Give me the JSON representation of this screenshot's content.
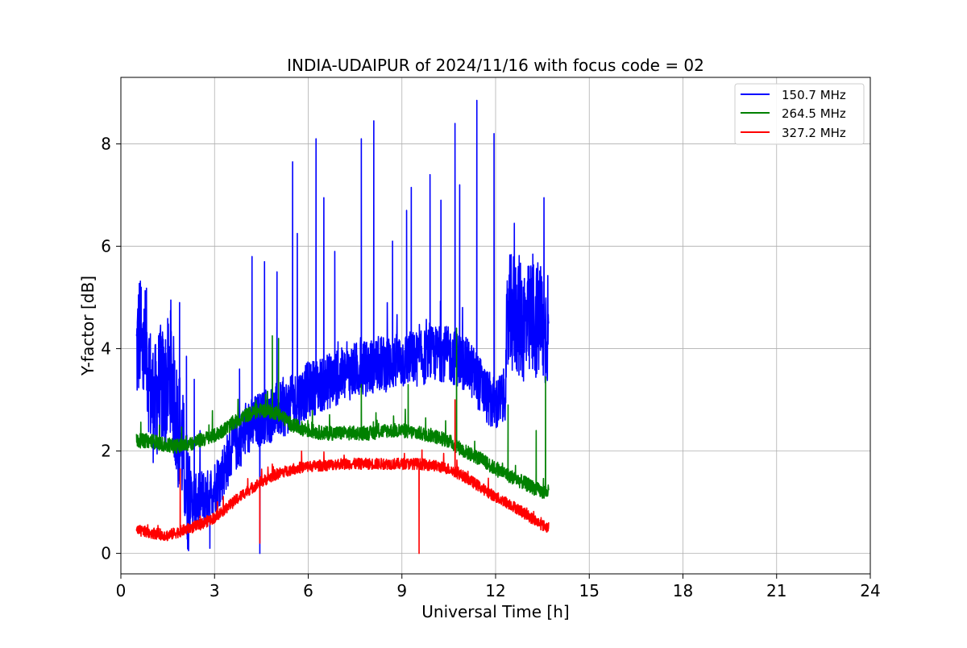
{
  "chart_data": {
    "type": "line",
    "title": "INDIA-UDAIPUR of 2024/11/16 with focus code = 02",
    "xlabel": "Universal Time [h]",
    "ylabel": "Y-factor [dB]",
    "xlim": [
      0,
      24
    ],
    "ylim": [
      -0.4,
      9.3
    ],
    "xticks": [
      0,
      3,
      6,
      9,
      12,
      15,
      18,
      21,
      24
    ],
    "yticks": [
      0,
      2,
      4,
      6,
      8
    ],
    "xtick_labels": [
      "0",
      "3",
      "6",
      "9",
      "12",
      "15",
      "18",
      "21",
      "24"
    ],
    "ytick_labels": [
      "0",
      "2",
      "4",
      "6",
      "8"
    ],
    "grid": true,
    "legend_position": "top-right",
    "series": [
      {
        "name": "150.7 MHz",
        "color": "#0000ff",
        "x": [
          0.5,
          0.6,
          0.7,
          0.8,
          0.9,
          1.0,
          1.1,
          1.2,
          1.3,
          1.4,
          1.5,
          1.6,
          1.7,
          1.8,
          1.9,
          2.0,
          2.1,
          2.2,
          2.4,
          2.6,
          2.8,
          3.0,
          3.2,
          3.4,
          3.6,
          3.8,
          4.0,
          4.2,
          4.4,
          4.6,
          4.8,
          5.0,
          5.2,
          5.4,
          5.6,
          5.8,
          6.0,
          6.2,
          6.4,
          6.6,
          6.8,
          7.0,
          7.2,
          7.4,
          7.6,
          7.8,
          8.0,
          8.2,
          8.4,
          8.6,
          8.8,
          9.0,
          9.2,
          9.4,
          9.6,
          9.8,
          10.0,
          10.2,
          10.4,
          10.6,
          10.8,
          11.0,
          11.2,
          11.4,
          11.6,
          11.8,
          12.0,
          12.2,
          12.3,
          12.4,
          12.6,
          12.8,
          13.0,
          13.2,
          13.4,
          13.6,
          13.7
        ],
        "y": [
          3.9,
          4.3,
          3.8,
          4.1,
          3.5,
          3.0,
          2.9,
          3.2,
          3.3,
          3.1,
          3.4,
          3.6,
          3.0,
          2.5,
          2.4,
          1.9,
          1.3,
          1.1,
          1.0,
          1.1,
          1.1,
          1.3,
          1.5,
          1.8,
          2.1,
          2.2,
          2.4,
          2.5,
          2.6,
          2.7,
          2.7,
          2.8,
          2.8,
          2.9,
          3.0,
          3.1,
          3.2,
          3.25,
          3.3,
          3.35,
          3.4,
          3.45,
          3.5,
          3.55,
          3.6,
          3.6,
          3.65,
          3.7,
          3.7,
          3.7,
          3.75,
          3.75,
          3.8,
          3.8,
          3.8,
          3.85,
          3.9,
          3.9,
          3.9,
          3.85,
          3.8,
          3.7,
          3.6,
          3.4,
          3.2,
          3.0,
          2.9,
          3.0,
          3.1,
          4.6,
          4.7,
          4.6,
          4.4,
          4.6,
          4.5,
          4.4,
          4.5
        ],
        "spikes": [
          {
            "x": 0.65,
            "y": 5.2
          },
          {
            "x": 1.6,
            "y": 4.95
          },
          {
            "x": 1.88,
            "y": 4.9
          },
          {
            "x": 2.1,
            "y": 3.85
          },
          {
            "x": 2.35,
            "y": 3.4
          },
          {
            "x": 2.85,
            "y": 0.1
          },
          {
            "x": 3.8,
            "y": 3.6
          },
          {
            "x": 4.2,
            "y": 5.8
          },
          {
            "x": 4.45,
            "y": 0.0
          },
          {
            "x": 4.6,
            "y": 5.7
          },
          {
            "x": 5.0,
            "y": 5.5
          },
          {
            "x": 5.5,
            "y": 7.65
          },
          {
            "x": 5.65,
            "y": 6.25
          },
          {
            "x": 6.25,
            "y": 8.1
          },
          {
            "x": 6.5,
            "y": 6.95
          },
          {
            "x": 6.85,
            "y": 5.9
          },
          {
            "x": 7.7,
            "y": 8.1
          },
          {
            "x": 8.1,
            "y": 8.45
          },
          {
            "x": 8.7,
            "y": 6.1
          },
          {
            "x": 9.15,
            "y": 6.7
          },
          {
            "x": 9.3,
            "y": 7.15
          },
          {
            "x": 9.9,
            "y": 7.4
          },
          {
            "x": 10.25,
            "y": 6.9
          },
          {
            "x": 10.7,
            "y": 8.4
          },
          {
            "x": 10.85,
            "y": 7.2
          },
          {
            "x": 11.4,
            "y": 8.85
          },
          {
            "x": 11.95,
            "y": 8.2
          },
          {
            "x": 12.6,
            "y": 6.45
          },
          {
            "x": 13.55,
            "y": 6.95
          }
        ]
      },
      {
        "name": "264.5 MHz",
        "color": "#008000",
        "x": [
          0.5,
          1.0,
          1.5,
          2.0,
          2.5,
          3.0,
          3.5,
          4.0,
          4.5,
          5.0,
          5.5,
          6.0,
          6.5,
          7.0,
          7.5,
          8.0,
          8.5,
          9.0,
          9.5,
          10.0,
          10.5,
          11.0,
          11.5,
          12.0,
          12.5,
          13.0,
          13.5,
          13.7
        ],
        "y": [
          2.2,
          2.2,
          2.1,
          2.1,
          2.2,
          2.3,
          2.5,
          2.7,
          2.8,
          2.75,
          2.5,
          2.4,
          2.35,
          2.35,
          2.35,
          2.35,
          2.4,
          2.4,
          2.35,
          2.3,
          2.2,
          2.0,
          1.85,
          1.65,
          1.5,
          1.35,
          1.2,
          1.2
        ],
        "spikes": [
          {
            "x": 4.85,
            "y": 4.25
          },
          {
            "x": 5.05,
            "y": 4.2
          },
          {
            "x": 7.7,
            "y": 3.3
          },
          {
            "x": 9.2,
            "y": 3.3
          },
          {
            "x": 10.75,
            "y": 4.4
          },
          {
            "x": 12.4,
            "y": 2.9
          },
          {
            "x": 13.3,
            "y": 2.4
          },
          {
            "x": 13.6,
            "y": 3.45
          }
        ]
      },
      {
        "name": "327.2 MHz",
        "color": "#ff0000",
        "x": [
          0.5,
          1.0,
          1.5,
          2.0,
          2.5,
          3.0,
          3.5,
          4.0,
          4.5,
          5.0,
          5.5,
          6.0,
          6.5,
          7.0,
          7.5,
          8.0,
          8.5,
          9.0,
          9.5,
          10.0,
          10.5,
          11.0,
          11.5,
          12.0,
          12.5,
          13.0,
          13.5,
          13.7
        ],
        "y": [
          0.45,
          0.4,
          0.35,
          0.45,
          0.55,
          0.7,
          0.95,
          1.2,
          1.4,
          1.55,
          1.65,
          1.7,
          1.72,
          1.75,
          1.75,
          1.75,
          1.75,
          1.75,
          1.75,
          1.72,
          1.65,
          1.5,
          1.3,
          1.1,
          0.95,
          0.75,
          0.55,
          0.5
        ],
        "spikes": [
          {
            "x": 1.9,
            "y": 1.65
          },
          {
            "x": 4.45,
            "y": 0.2
          },
          {
            "x": 9.55,
            "y": 0.0
          },
          {
            "x": 10.7,
            "y": 3.0
          }
        ]
      }
    ]
  }
}
